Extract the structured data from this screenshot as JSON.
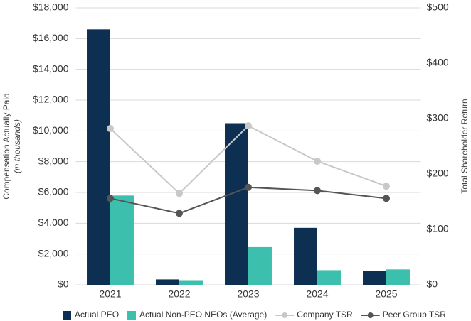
{
  "chart_data": {
    "type": "bar_line",
    "categories": [
      "2021",
      "2022",
      "2023",
      "2024",
      "2025"
    ],
    "y_label": "Compensation Actually Paid",
    "y_label_sub": "(in thousands)",
    "y2_label": "Total Shareholder Return",
    "ylim": [
      0,
      18000
    ],
    "yticks": [
      {
        "value": 0,
        "label": "$0"
      },
      {
        "value": 2000,
        "label": "$2,000"
      },
      {
        "value": 4000,
        "label": "$4,000"
      },
      {
        "value": 6000,
        "label": "$6,000"
      },
      {
        "value": 8000,
        "label": "$8,000"
      },
      {
        "value": 10000,
        "label": "$10,000"
      },
      {
        "value": 12000,
        "label": "$12,000"
      },
      {
        "value": 14000,
        "label": "$14,000"
      },
      {
        "value": 16000,
        "label": "$16,000"
      },
      {
        "value": 18000,
        "label": "$18,000"
      }
    ],
    "y2lim": [
      0,
      500
    ],
    "y2ticks": [
      {
        "value": 0,
        "label": "$0"
      },
      {
        "value": 100,
        "label": "$100"
      },
      {
        "value": 200,
        "label": "$200"
      },
      {
        "value": 300,
        "label": "$300"
      },
      {
        "value": 400,
        "label": "$400"
      },
      {
        "value": 500,
        "label": "$500"
      }
    ],
    "grid": true,
    "series": [
      {
        "name": "Actual PEO",
        "kind": "bar",
        "color": "#0d2f52",
        "values": [
          16600,
          350,
          10500,
          3700,
          900
        ]
      },
      {
        "name": "Actual Non-PEO NEOs (Average)",
        "kind": "bar",
        "color": "#3dbfad",
        "values": [
          5800,
          300,
          2450,
          950,
          1000
        ]
      },
      {
        "name": "Company TSR",
        "kind": "line",
        "axis": "y2",
        "color": "#c8c8c8",
        "values": [
          282,
          165,
          287,
          223,
          178
        ]
      },
      {
        "name": "Peer Group TSR",
        "kind": "line",
        "axis": "y2",
        "color": "#555555",
        "values": [
          156,
          129,
          176,
          170,
          156
        ]
      }
    ]
  }
}
